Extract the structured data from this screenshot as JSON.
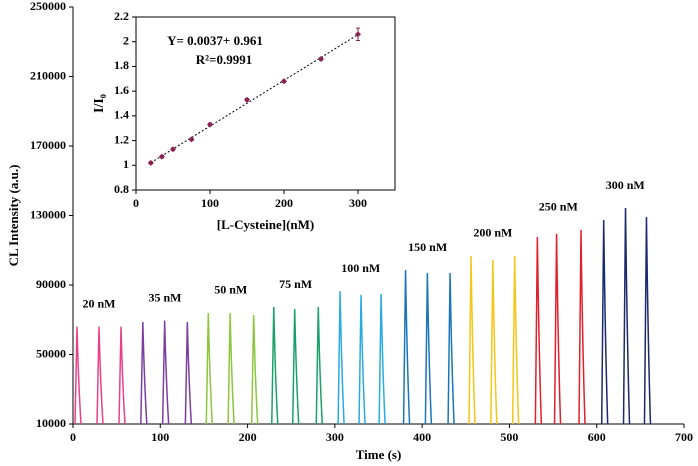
{
  "chart_data": [
    {
      "type": "spike",
      "xlabel": "Time (s)",
      "ylabel": "CL Intensity (a.u.)",
      "xlim": [
        0,
        700
      ],
      "xticks": [
        0,
        100,
        200,
        300,
        400,
        500,
        600,
        700
      ],
      "ylim": [
        10000,
        250000
      ],
      "yticks": [
        10000,
        50000,
        90000,
        130000,
        170000,
        210000,
        250000
      ],
      "series": [
        {
          "name": "20 nM",
          "color": "#e8408a",
          "x": [
            4.6,
            29.8,
            55
          ],
          "values": [
            66000,
            66000,
            66000
          ]
        },
        {
          "name": "35 nM",
          "color": "#7b3fa0",
          "x": [
            80,
            105,
            131
          ],
          "values": [
            68700,
            69500,
            68700
          ]
        },
        {
          "name": "50 nM",
          "color": "#8cc63e",
          "x": [
            155,
            180,
            207
          ],
          "values": [
            73900,
            73900,
            72700
          ]
        },
        {
          "name": "75 nM",
          "color": "#1aa06a",
          "x": [
            230,
            254,
            281
          ],
          "values": [
            77300,
            76200,
            77300
          ]
        },
        {
          "name": "100 nM",
          "color": "#29abe2",
          "x": [
            306,
            330,
            353
          ],
          "values": [
            86500,
            84300,
            84800
          ]
        },
        {
          "name": "150 nM",
          "color": "#1b75bb",
          "x": [
            381,
            406,
            432
          ],
          "values": [
            98600,
            96900,
            96900
          ]
        },
        {
          "name": "200 nM",
          "color": "#f5c518",
          "x": [
            456,
            481,
            506
          ],
          "values": [
            106700,
            104400,
            106700
          ]
        },
        {
          "name": "250 nM",
          "color": "#e0202a",
          "x": [
            532,
            554,
            582
          ],
          "values": [
            117600,
            119400,
            121700
          ]
        },
        {
          "name": "300 nM",
          "color": "#1a2a6c",
          "x": [
            608,
            633,
            657
          ],
          "values": [
            127400,
            134300,
            129100
          ]
        }
      ]
    },
    {
      "type": "scatter",
      "xlabel": "[L-Cysteine](nM)",
      "ylabel": "I/I₀",
      "annotations": [
        "Y= 0.0037+ 0.961",
        "R²=0.9991"
      ],
      "xlim": [
        0,
        350
      ],
      "xticks": [
        0,
        100,
        200,
        300
      ],
      "ylim": [
        0.8,
        2.2
      ],
      "yticks": [
        0.8,
        1,
        1.2,
        1.4,
        1.6,
        1.8,
        2,
        2.2
      ],
      "color": "#8b2252",
      "x": [
        20,
        35,
        50,
        75,
        100,
        150,
        200,
        250,
        300
      ],
      "values": [
        1.02,
        1.07,
        1.13,
        1.21,
        1.33,
        1.53,
        1.68,
        1.86,
        2.06
      ],
      "errors": [
        0.01,
        0.01,
        0.01,
        0.01,
        0.01,
        0.01,
        0.01,
        0.01,
        0.05
      ]
    }
  ]
}
